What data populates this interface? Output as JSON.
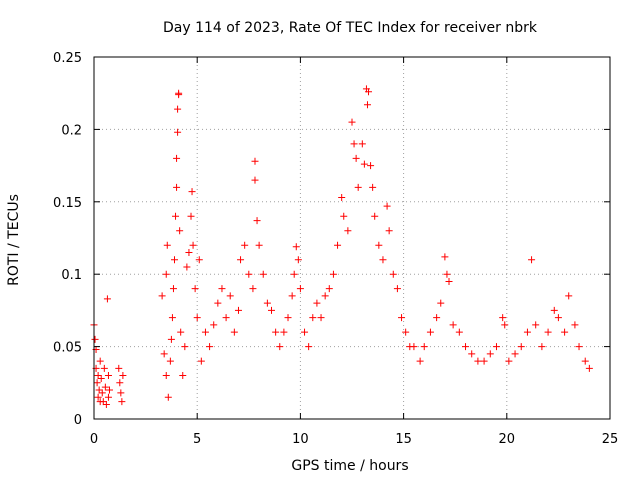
{
  "chart_data": {
    "type": "scatter",
    "title": "Day 114 of 2023, Rate Of TEC Index for receiver nbrk",
    "xlabel": "GPS time / hours",
    "ylabel": "ROTI / TECUs",
    "xlim": [
      0,
      25
    ],
    "ylim": [
      0,
      0.25
    ],
    "x_ticks": [
      "0",
      "5",
      "10",
      "15",
      "20",
      "25"
    ],
    "y_ticks": [
      "0",
      "0.05",
      "0.1",
      "0.15",
      "0.2",
      "0.25"
    ],
    "grid": true,
    "marker": "+",
    "color": "#ff0000",
    "series": [
      {
        "values": [
          [
            0.0,
            0.065
          ],
          [
            0.05,
            0.055
          ],
          [
            0.1,
            0.048
          ],
          [
            0.1,
            0.035
          ],
          [
            0.15,
            0.025
          ],
          [
            0.2,
            0.03
          ],
          [
            0.2,
            0.015
          ],
          [
            0.25,
            0.02
          ],
          [
            0.3,
            0.012
          ],
          [
            0.3,
            0.04
          ],
          [
            0.35,
            0.028
          ],
          [
            0.4,
            0.018
          ],
          [
            0.45,
            0.012
          ],
          [
            0.5,
            0.035
          ],
          [
            0.55,
            0.022
          ],
          [
            0.6,
            0.01
          ],
          [
            0.65,
            0.083
          ],
          [
            0.7,
            0.03
          ],
          [
            0.7,
            0.015
          ],
          [
            0.75,
            0.02
          ],
          [
            1.2,
            0.035
          ],
          [
            1.25,
            0.025
          ],
          [
            1.3,
            0.018
          ],
          [
            1.35,
            0.012
          ],
          [
            1.4,
            0.03
          ],
          [
            3.3,
            0.085
          ],
          [
            3.4,
            0.045
          ],
          [
            3.5,
            0.03
          ],
          [
            3.5,
            0.1
          ],
          [
            3.55,
            0.12
          ],
          [
            3.6,
            0.015
          ],
          [
            3.7,
            0.04
          ],
          [
            3.75,
            0.055
          ],
          [
            3.8,
            0.07
          ],
          [
            3.85,
            0.09
          ],
          [
            3.9,
            0.11
          ],
          [
            3.95,
            0.14
          ],
          [
            4.0,
            0.16
          ],
          [
            4.0,
            0.18
          ],
          [
            4.05,
            0.198
          ],
          [
            4.05,
            0.214
          ],
          [
            4.1,
            0.224
          ],
          [
            4.1,
            0.225
          ],
          [
            4.15,
            0.13
          ],
          [
            4.2,
            0.06
          ],
          [
            4.3,
            0.03
          ],
          [
            4.4,
            0.05
          ],
          [
            4.5,
            0.105
          ],
          [
            4.6,
            0.115
          ],
          [
            4.7,
            0.14
          ],
          [
            4.75,
            0.157
          ],
          [
            4.8,
            0.12
          ],
          [
            4.9,
            0.09
          ],
          [
            5.0,
            0.07
          ],
          [
            5.1,
            0.11
          ],
          [
            5.2,
            0.04
          ],
          [
            5.4,
            0.06
          ],
          [
            5.6,
            0.05
          ],
          [
            5.8,
            0.065
          ],
          [
            6.0,
            0.08
          ],
          [
            6.2,
            0.09
          ],
          [
            6.4,
            0.07
          ],
          [
            6.6,
            0.085
          ],
          [
            6.8,
            0.06
          ],
          [
            7.0,
            0.075
          ],
          [
            7.1,
            0.11
          ],
          [
            7.3,
            0.12
          ],
          [
            7.5,
            0.1
          ],
          [
            7.7,
            0.09
          ],
          [
            7.8,
            0.178
          ],
          [
            7.8,
            0.165
          ],
          [
            7.9,
            0.137
          ],
          [
            8.0,
            0.12
          ],
          [
            8.2,
            0.1
          ],
          [
            8.4,
            0.08
          ],
          [
            8.6,
            0.075
          ],
          [
            8.8,
            0.06
          ],
          [
            9.0,
            0.05
          ],
          [
            9.2,
            0.06
          ],
          [
            9.4,
            0.07
          ],
          [
            9.6,
            0.085
          ],
          [
            9.7,
            0.1
          ],
          [
            9.8,
            0.119
          ],
          [
            9.9,
            0.11
          ],
          [
            10.0,
            0.09
          ],
          [
            10.2,
            0.06
          ],
          [
            10.4,
            0.05
          ],
          [
            10.6,
            0.07
          ],
          [
            10.8,
            0.08
          ],
          [
            11.0,
            0.07
          ],
          [
            11.2,
            0.085
          ],
          [
            11.4,
            0.09
          ],
          [
            11.6,
            0.1
          ],
          [
            11.8,
            0.12
          ],
          [
            12.0,
            0.153
          ],
          [
            12.1,
            0.14
          ],
          [
            12.3,
            0.13
          ],
          [
            12.5,
            0.205
          ],
          [
            12.6,
            0.19
          ],
          [
            12.7,
            0.18
          ],
          [
            12.8,
            0.16
          ],
          [
            13.0,
            0.19
          ],
          [
            13.1,
            0.176
          ],
          [
            13.2,
            0.228
          ],
          [
            13.25,
            0.217
          ],
          [
            13.3,
            0.226
          ],
          [
            13.4,
            0.175
          ],
          [
            13.5,
            0.16
          ],
          [
            13.6,
            0.14
          ],
          [
            13.8,
            0.12
          ],
          [
            14.0,
            0.11
          ],
          [
            14.2,
            0.147
          ],
          [
            14.3,
            0.13
          ],
          [
            14.5,
            0.1
          ],
          [
            14.7,
            0.09
          ],
          [
            14.9,
            0.07
          ],
          [
            15.1,
            0.06
          ],
          [
            15.3,
            0.05
          ],
          [
            15.5,
            0.05
          ],
          [
            15.8,
            0.04
          ],
          [
            16.0,
            0.05
          ],
          [
            16.3,
            0.06
          ],
          [
            16.6,
            0.07
          ],
          [
            16.8,
            0.08
          ],
          [
            17.0,
            0.112
          ],
          [
            17.1,
            0.1
          ],
          [
            17.2,
            0.095
          ],
          [
            17.4,
            0.065
          ],
          [
            17.7,
            0.06
          ],
          [
            18.0,
            0.05
          ],
          [
            18.3,
            0.045
          ],
          [
            18.6,
            0.04
          ],
          [
            18.9,
            0.04
          ],
          [
            19.2,
            0.045
          ],
          [
            19.5,
            0.05
          ],
          [
            19.8,
            0.07
          ],
          [
            19.9,
            0.065
          ],
          [
            20.1,
            0.04
          ],
          [
            20.4,
            0.045
          ],
          [
            20.7,
            0.05
          ],
          [
            21.0,
            0.06
          ],
          [
            21.2,
            0.11
          ],
          [
            21.4,
            0.065
          ],
          [
            21.7,
            0.05
          ],
          [
            22.0,
            0.06
          ],
          [
            22.3,
            0.075
          ],
          [
            22.5,
            0.07
          ],
          [
            22.8,
            0.06
          ],
          [
            23.0,
            0.085
          ],
          [
            23.3,
            0.065
          ],
          [
            23.5,
            0.05
          ],
          [
            23.8,
            0.04
          ],
          [
            24.0,
            0.035
          ]
        ]
      }
    ]
  }
}
